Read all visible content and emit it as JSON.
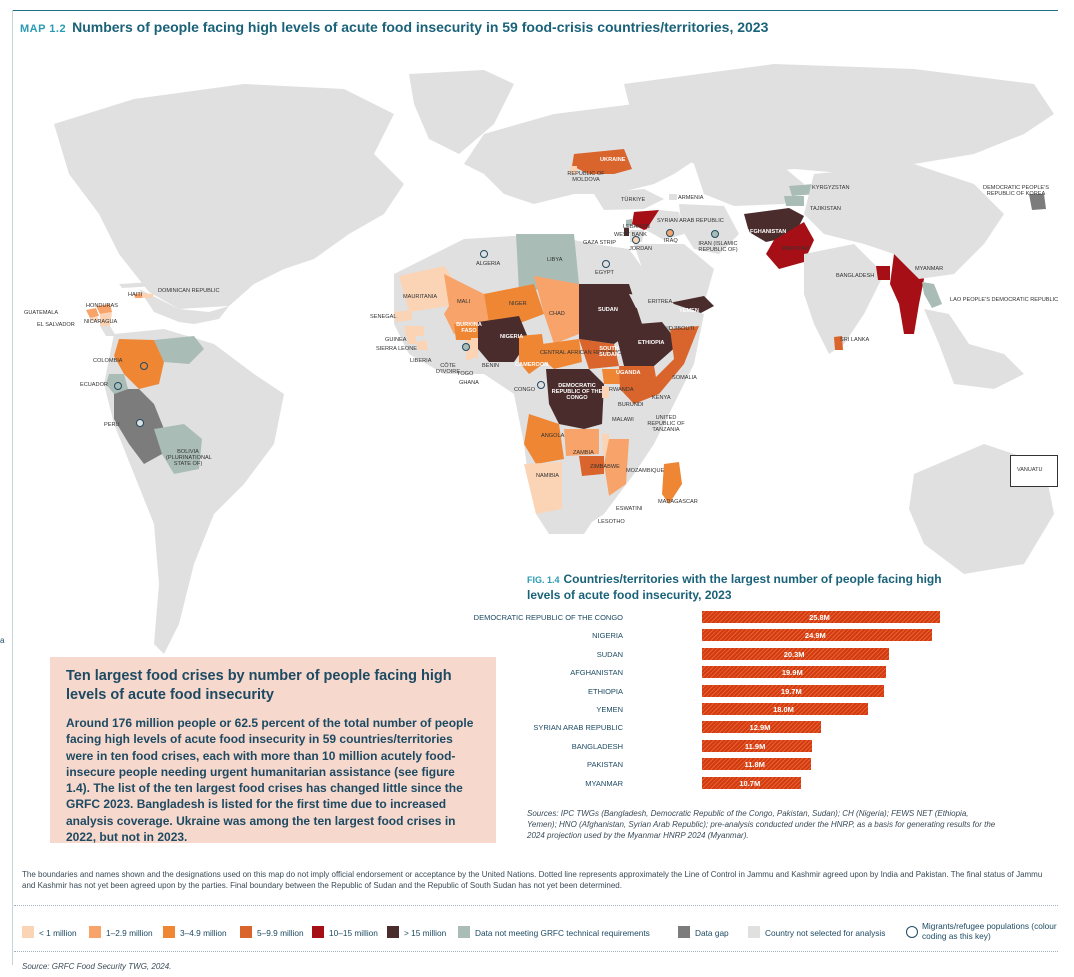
{
  "map": {
    "code": "MAP 1.2",
    "title": "Numbers of people facing high levels of acute food insecurity in 59 food-crisis countries/territories, 2023",
    "colors": {
      "lt1": "#fbd3b5",
      "c1_2_9": "#f7a36a",
      "c3_4_9": "#ee8634",
      "c5_9_9": "#d9642c",
      "c10_15": "#a50f15",
      "c15plus": "#4a2c2c",
      "not_meeting": "#a9bcb6",
      "gap": "#7c7c7c",
      "not_selected": "#e0e0e0",
      "water": "#ffffff"
    },
    "labels": [
      "UKRAINE",
      "REPUBLIC OF MOLDOVA",
      "TÜRKIYE",
      "ARMENIA",
      "KYRGYZSTAN",
      "TAJIKISTAN",
      "DEMOCRATIC PEOPLE'S REPUBLIC OF KOREA",
      "LEBANON",
      "SYRIAN ARAB REPUBLIC",
      "WEST BANK",
      "GAZA STRIP",
      "JORDAN",
      "IRAQ",
      "IRAN (ISLAMIC REPUBLIC OF)",
      "AFGHANISTAN",
      "PAKISTAN",
      "BANGLADESH",
      "MYANMAR",
      "LAO PEOPLE'S DEMOCRATIC REPUBLIC",
      "SRI LANKA",
      "LIBYA",
      "ALGERIA",
      "EGYPT",
      "MAURITANIA",
      "MALI",
      "NIGER",
      "CHAD",
      "SUDAN",
      "ERITREA",
      "YEMEN",
      "DJIBOUTI",
      "ETHIOPIA",
      "SOMALIA",
      "SENEGAL",
      "GUINEA",
      "SIERRA LEONE",
      "LIBERIA",
      "BURKINA FASO",
      "CÔTE D'IVOIRE",
      "GHANA",
      "TOGO",
      "BENIN",
      "NIGERIA",
      "CAMEROON",
      "CENTRAL AFRICAN REPUBLIC",
      "SOUTH SUDAN",
      "UGANDA",
      "KENYA",
      "CONGO",
      "DEMOCRATIC REPUBLIC OF THE CONGO",
      "RWANDA",
      "BURUNDI",
      "UNITED REPUBLIC OF TANZANIA",
      "ANGOLA",
      "ZAMBIA",
      "MALAWI",
      "MOZAMBIQUE",
      "ZIMBABWE",
      "NAMIBIA",
      "MADAGASCAR",
      "ESWATINI",
      "LESOTHO",
      "HAITI",
      "DOMINICAN REPUBLIC",
      "HONDURAS",
      "GUATEMALA",
      "EL SALVADOR",
      "NICARAGUA",
      "COLOMBIA",
      "ECUADOR",
      "PERU",
      "BOLIVIA (PLURINATIONAL STATE OF)",
      "VANUATU"
    ]
  },
  "callout": {
    "title": "Ten largest food crises by number of people facing high levels of acute food insecurity",
    "body": "Around 176 million people or 62.5 percent of the total number of people facing high levels of acute food insecurity in 59 countries/territories were in ten food crises, each with more than 10 million acutely food-insecure people needing urgent humanitarian assistance (see figure 1.4). The list of the ten largest food crises has changed little since the GRFC 2023. Bangladesh is listed for the first time due to increased analysis coverage. Ukraine was among the ten largest food crises in 2022, but not in 2023."
  },
  "figure": {
    "code": "FIG. 1.4",
    "title": "Countries/territories with the largest number of people facing high levels of acute food insecurity, 2023",
    "sources": "Sources: IPC TWGs (Bangladesh, Democratic Republic of the Congo, Pakistan, Sudan); CH (Nigeria); FEWS NET (Ethiopia, Yemen); HNO (Afghanistan, Syrian Arab Republic); pre-analysis conducted under the HNRP, as a basis for generating results for the 2024 projection used by the Myanmar HNRP 2024 (Myanmar)."
  },
  "chart_data": {
    "type": "bar",
    "orientation": "horizontal",
    "categories": [
      "DEMOCRATIC REPUBLIC OF THE CONGO",
      "NIGERIA",
      "SUDAN",
      "AFGHANISTAN",
      "ETHIOPIA",
      "YEMEN",
      "SYRIAN ARAB REPUBLIC",
      "BANGLADESH",
      "PAKISTAN",
      "MYANMAR"
    ],
    "values": [
      25.8,
      24.9,
      20.3,
      19.9,
      19.7,
      18.0,
      12.9,
      11.9,
      11.8,
      10.7
    ],
    "value_labels": [
      "25.8M",
      "24.9M",
      "20.3M",
      "19.9M",
      "19.7M",
      "18.0M",
      "12.9M",
      "11.9M",
      "11.8M",
      "10.7M"
    ],
    "xlim": [
      0,
      26
    ]
  },
  "disclaimer": "The boundaries and names shown and the designations used on this map do not imply official endorsement or acceptance by the United Nations. Dotted line represents approximately the Line of Control in Jammu and Kashmir agreed upon by India and Pakistan. The final status of Jammu and Kashmir has not yet been agreed upon by the parties. Final boundary between the Republic of Sudan and the Republic of South Sudan has not yet been determined.",
  "legend": [
    {
      "label": "< 1 million",
      "color": "#fbd3b5"
    },
    {
      "label": "1–2.9 million",
      "color": "#f7a36a"
    },
    {
      "label": "3–4.9 million",
      "color": "#ee8634"
    },
    {
      "label": "5–9.9 million",
      "color": "#d9642c"
    },
    {
      "label": "10–15 million",
      "color": "#a50f15"
    },
    {
      "label": "> 15 million",
      "color": "#4a2c2c"
    },
    {
      "label": "Data not meeting GRFC technical requirements",
      "color": "#a9bcb6"
    },
    {
      "label": "Data gap",
      "color": "#7c7c7c"
    },
    {
      "label": "Country not selected for analysis",
      "color": "#e0e0e0"
    }
  ],
  "legend_migrants": "Migrants/refugee populations (colour coding as this key)",
  "source_foot": "Source: GRFC Food Security TWG, 2024.",
  "side_letter": "a"
}
